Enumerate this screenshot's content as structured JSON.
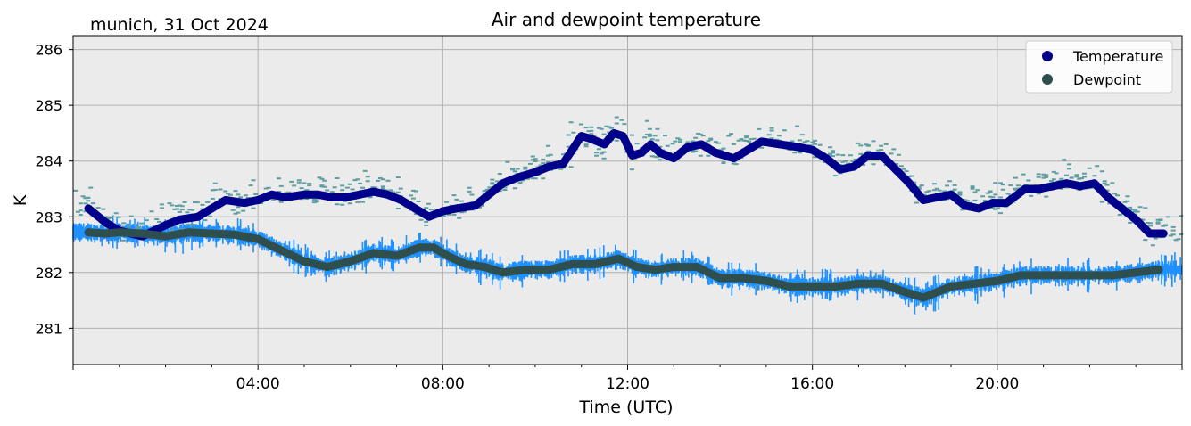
{
  "chart_data": {
    "type": "line",
    "title": "Air and dewpoint temperature",
    "subtitle": "munich, 31 Oct 2024",
    "xlabel": "Time (UTC)",
    "ylabel": "K",
    "xlim": [
      0,
      24
    ],
    "ylim": [
      280.35,
      286.25
    ],
    "x_ticks": [
      {
        "x": 4,
        "label": "04:00"
      },
      {
        "x": 8,
        "label": "08:00"
      },
      {
        "x": 12,
        "label": "12:00"
      },
      {
        "x": 16,
        "label": "16:00"
      },
      {
        "x": 20,
        "label": "20:00"
      }
    ],
    "y_ticks": [
      281,
      282,
      283,
      284,
      285,
      286
    ],
    "grid": true,
    "legend_position": "top-right",
    "colors": {
      "temperature": "#00008b",
      "dewpoint": "#2f4f4f",
      "temperature_raw": "#5f9ea0",
      "dewpoint_raw": "#1e90ff",
      "plot_bg": "#ebebeb",
      "grid": "#b0b0b0"
    },
    "series": [
      {
        "name": "Temperature",
        "x": [
          0.33,
          0.7,
          1.0,
          1.5,
          2.0,
          2.3,
          2.7,
          3.0,
          3.3,
          3.7,
          4.0,
          4.3,
          4.6,
          5.0,
          5.3,
          5.6,
          5.9,
          6.2,
          6.5,
          6.8,
          7.1,
          7.4,
          7.7,
          8.0,
          8.3,
          8.7,
          9.0,
          9.3,
          9.6,
          10.0,
          10.3,
          10.6,
          10.8,
          11.0,
          11.2,
          11.5,
          11.7,
          11.9,
          12.1,
          12.3,
          12.5,
          12.7,
          13.0,
          13.3,
          13.6,
          13.9,
          14.3,
          14.6,
          14.9,
          15.3,
          15.7,
          16.0,
          16.3,
          16.6,
          16.9,
          17.2,
          17.5,
          17.8,
          18.1,
          18.4,
          18.7,
          19.0,
          19.3,
          19.6,
          19.9,
          20.2,
          20.6,
          20.9,
          21.2,
          21.5,
          21.8,
          22.1,
          22.4,
          22.7,
          23.0,
          23.3,
          23.6
        ],
        "values": [
          283.15,
          282.9,
          282.75,
          282.65,
          282.85,
          282.95,
          283.0,
          283.15,
          283.3,
          283.25,
          283.3,
          283.4,
          283.35,
          283.4,
          283.4,
          283.35,
          283.35,
          283.4,
          283.45,
          283.4,
          283.3,
          283.15,
          283.0,
          283.1,
          283.15,
          283.2,
          283.4,
          283.6,
          283.7,
          283.8,
          283.9,
          283.95,
          284.2,
          284.45,
          284.4,
          284.3,
          284.5,
          284.45,
          284.1,
          284.15,
          284.3,
          284.15,
          284.05,
          284.25,
          284.3,
          284.15,
          284.05,
          284.2,
          284.35,
          284.3,
          284.25,
          284.2,
          284.05,
          283.85,
          283.9,
          284.1,
          284.1,
          283.85,
          283.6,
          283.3,
          283.35,
          283.4,
          283.2,
          283.15,
          283.25,
          283.25,
          283.5,
          283.5,
          283.55,
          283.6,
          283.55,
          283.6,
          283.35,
          283.15,
          282.95,
          282.7,
          282.7
        ]
      },
      {
        "name": "Dewpoint",
        "x": [
          0.33,
          0.7,
          1.0,
          1.5,
          2.0,
          2.5,
          3.0,
          3.5,
          4.0,
          4.5,
          5.0,
          5.5,
          6.0,
          6.5,
          7.0,
          7.5,
          7.8,
          8.1,
          8.5,
          8.9,
          9.3,
          9.8,
          10.3,
          10.8,
          11.3,
          11.8,
          12.2,
          12.6,
          13.0,
          13.5,
          14.0,
          14.5,
          15.0,
          15.5,
          16.0,
          16.5,
          17.0,
          17.5,
          18.0,
          18.4,
          18.7,
          19.0,
          19.5,
          20.0,
          20.5,
          21.0,
          21.5,
          22.0,
          22.5,
          23.0,
          23.5
        ],
        "values": [
          282.72,
          282.7,
          282.72,
          282.7,
          282.65,
          282.72,
          282.7,
          282.68,
          282.6,
          282.4,
          282.2,
          282.1,
          282.2,
          282.35,
          282.3,
          282.45,
          282.45,
          282.3,
          282.15,
          282.1,
          282.0,
          282.05,
          282.05,
          282.15,
          282.15,
          282.25,
          282.1,
          282.05,
          282.1,
          282.1,
          281.9,
          281.9,
          281.85,
          281.75,
          281.75,
          281.75,
          281.8,
          281.8,
          281.65,
          281.55,
          281.65,
          281.75,
          281.8,
          281.85,
          281.95,
          281.95,
          281.95,
          281.95,
          281.95,
          282.0,
          282.05
        ]
      }
    ]
  }
}
